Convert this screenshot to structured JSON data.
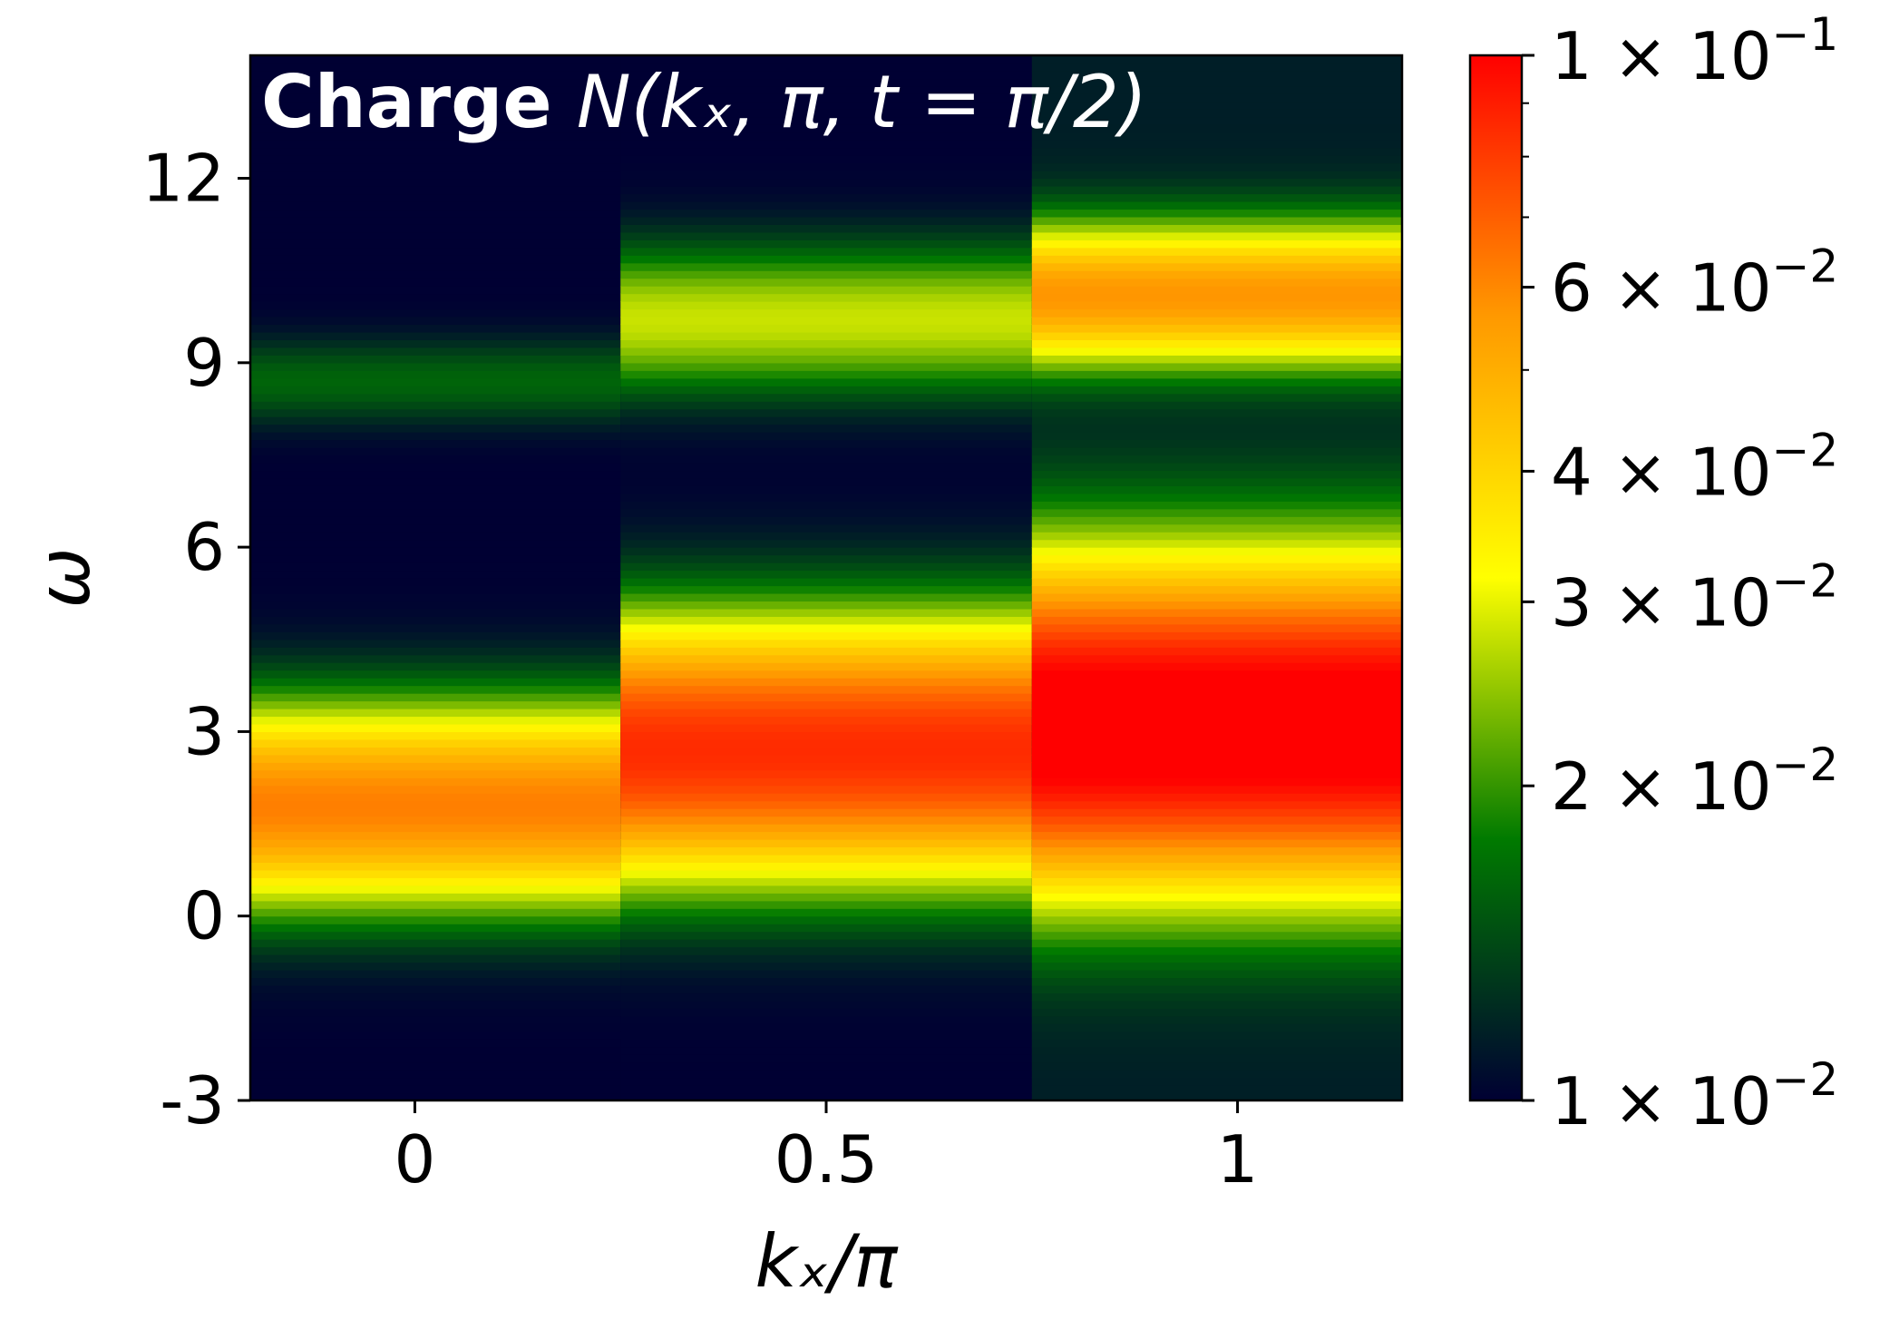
{
  "chart_data": {
    "type": "heatmap",
    "title": {
      "bold": "Charge",
      "math": "N(kₓ, π, t = π/2)"
    },
    "xlabel": "kₓ/π",
    "ylabel": "ω",
    "xlim": [
      -0.2,
      1.2
    ],
    "ylim": [
      -3,
      14
    ],
    "x_ticks": [
      {
        "value": 0,
        "label": "0"
      },
      {
        "value": 0.5,
        "label": "0.5"
      },
      {
        "value": 1,
        "label": "1"
      }
    ],
    "y_ticks": [
      {
        "value": -3,
        "label": "-3"
      },
      {
        "value": 0,
        "label": "0"
      },
      {
        "value": 3,
        "label": "3"
      },
      {
        "value": 6,
        "label": "6"
      },
      {
        "value": 9,
        "label": "9"
      },
      {
        "value": 12,
        "label": "12"
      }
    ],
    "columns": [
      {
        "kx_center": 0,
        "kx_range": [
          -0.25,
          0.25
        ],
        "baseline": 0.01,
        "peaks": [
          {
            "omega": 1.8,
            "value": 0.062,
            "sigma": 1.0
          },
          {
            "omega": 8.7,
            "value": 0.016,
            "sigma": 0.45
          }
        ]
      },
      {
        "kx_center": 0.5,
        "kx_range": [
          0.25,
          0.75
        ],
        "baseline": 0.01,
        "peaks": [
          {
            "omega": 2.7,
            "value": 0.085,
            "sigma": 1.25
          },
          {
            "omega": 9.7,
            "value": 0.028,
            "sigma": 0.75
          }
        ]
      },
      {
        "kx_center": 1,
        "kx_range": [
          0.75,
          1.25
        ],
        "baseline": 0.0115,
        "peaks": [
          {
            "omega": 3.1,
            "value": 0.115,
            "sigma": 1.55
          },
          {
            "omega": 10.1,
            "value": 0.057,
            "sigma": 0.7
          }
        ]
      }
    ],
    "colorbar": {
      "scale": "log",
      "range": [
        0.01,
        0.1
      ],
      "colors": [
        "#000033",
        "#007a00",
        "#ffff00",
        "#ff9900",
        "#ff0000"
      ],
      "major_labels": [
        {
          "value": 0.1,
          "mantissa": "1",
          "exponent": "−1"
        },
        {
          "value": 0.06,
          "mantissa": "6",
          "exponent": "−2"
        },
        {
          "value": 0.04,
          "mantissa": "4",
          "exponent": "−2"
        },
        {
          "value": 0.03,
          "mantissa": "3",
          "exponent": "−2"
        },
        {
          "value": 0.02,
          "mantissa": "2",
          "exponent": "−2"
        },
        {
          "value": 0.01,
          "mantissa": "1",
          "exponent": "−2"
        }
      ],
      "minor_ticks": [
        0.05,
        0.07,
        0.08,
        0.09
      ]
    }
  }
}
